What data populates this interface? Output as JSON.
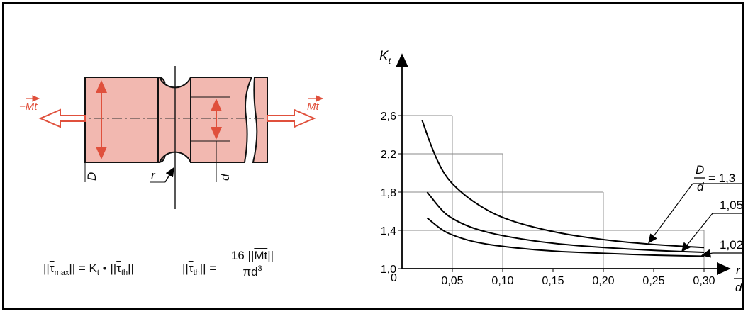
{
  "diagram": {
    "torque_left_label": "−Mt",
    "torque_right_label": "Mt",
    "dim_D": "D",
    "dim_d": "d",
    "dim_r": "r"
  },
  "formulas": {
    "f1_lhs_sym": "τ",
    "f1_lhs_sub": "max",
    "f1_eq": "= K",
    "f1_k_sub": "t",
    "f1_dot": "•",
    "f1_rhs_sym": "τ",
    "f1_rhs_sub": "th",
    "f2_sym": "τ",
    "f2_sub": "th",
    "f2_num_coef": "16",
    "f2_num_var": "Mt",
    "f2_den": "πd",
    "f2_den_exp": "3"
  },
  "chart_data": {
    "type": "line",
    "ylabel": "K",
    "ylabel_sub": "t",
    "xlabel_num": "r",
    "xlabel_den": "d",
    "origin_label": "0",
    "x_ticks": [
      "0,05",
      "0,10",
      "0,15",
      "0,20",
      "0,25",
      "0,30"
    ],
    "x_tick_values": [
      0.05,
      0.1,
      0.15,
      0.2,
      0.25,
      0.3
    ],
    "y_ticks": [
      "1,0",
      "1,4",
      "1,8",
      "2,2",
      "2,6"
    ],
    "y_tick_values": [
      1.0,
      1.4,
      1.8,
      2.2,
      2.6
    ],
    "xlim": [
      0,
      0.32
    ],
    "ylim": [
      1.0,
      3.0
    ],
    "grid": true,
    "legend_prefix_num": "D",
    "legend_prefix_den": "d",
    "legend_prefix_eq": "= 1,3",
    "series": [
      {
        "name": "1,3",
        "x": [
          0.02,
          0.03,
          0.04,
          0.05,
          0.07,
          0.1,
          0.15,
          0.2,
          0.25,
          0.3
        ],
        "y": [
          2.55,
          2.25,
          2.02,
          1.88,
          1.7,
          1.52,
          1.38,
          1.3,
          1.25,
          1.22
        ]
      },
      {
        "name": "1,05",
        "x": [
          0.025,
          0.04,
          0.05,
          0.07,
          0.1,
          0.15,
          0.2,
          0.25,
          0.3
        ],
        "y": [
          1.8,
          1.6,
          1.52,
          1.42,
          1.34,
          1.26,
          1.22,
          1.19,
          1.17
        ]
      },
      {
        "name": "1,02",
        "x": [
          0.025,
          0.04,
          0.05,
          0.07,
          0.1,
          0.15,
          0.2,
          0.25,
          0.3
        ],
        "y": [
          1.53,
          1.4,
          1.35,
          1.28,
          1.23,
          1.18,
          1.16,
          1.14,
          1.13
        ]
      }
    ],
    "grid_boxes": [
      {
        "x": 0.05,
        "y": 2.6
      },
      {
        "x": 0.1,
        "y": 2.2
      },
      {
        "x": 0.2,
        "y": 1.8
      },
      {
        "x": 0.3,
        "y": 1.4
      }
    ]
  }
}
